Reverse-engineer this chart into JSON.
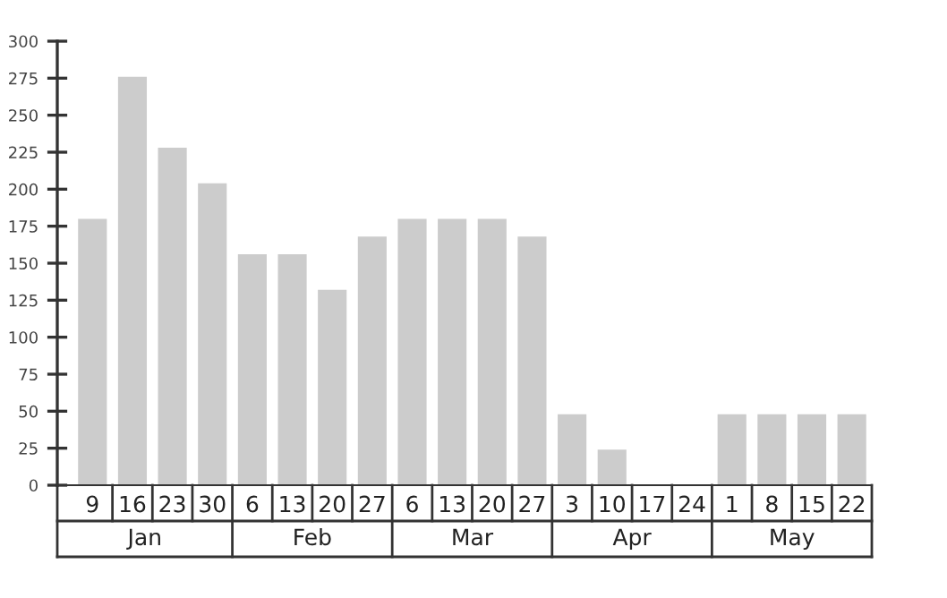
{
  "chart_data": {
    "type": "bar",
    "categories": [
      "9",
      "16",
      "23",
      "30",
      "6",
      "13",
      "20",
      "27",
      "6",
      "13",
      "20",
      "27",
      "3",
      "10",
      "17",
      "24",
      "1",
      "8",
      "15",
      "22"
    ],
    "values": [
      180,
      276,
      228,
      204,
      156,
      156,
      132,
      168,
      180,
      180,
      180,
      168,
      48,
      24,
      0,
      0,
      48,
      48,
      48,
      48
    ],
    "color": "#cccccc",
    "ylim": [
      0,
      300
    ],
    "yticks": [
      0,
      25,
      50,
      75,
      100,
      125,
      150,
      175,
      200,
      225,
      250,
      275,
      300
    ],
    "annotations": [
      "Jan",
      "Feb",
      "Mar",
      "Apr",
      "May"
    ]
  }
}
